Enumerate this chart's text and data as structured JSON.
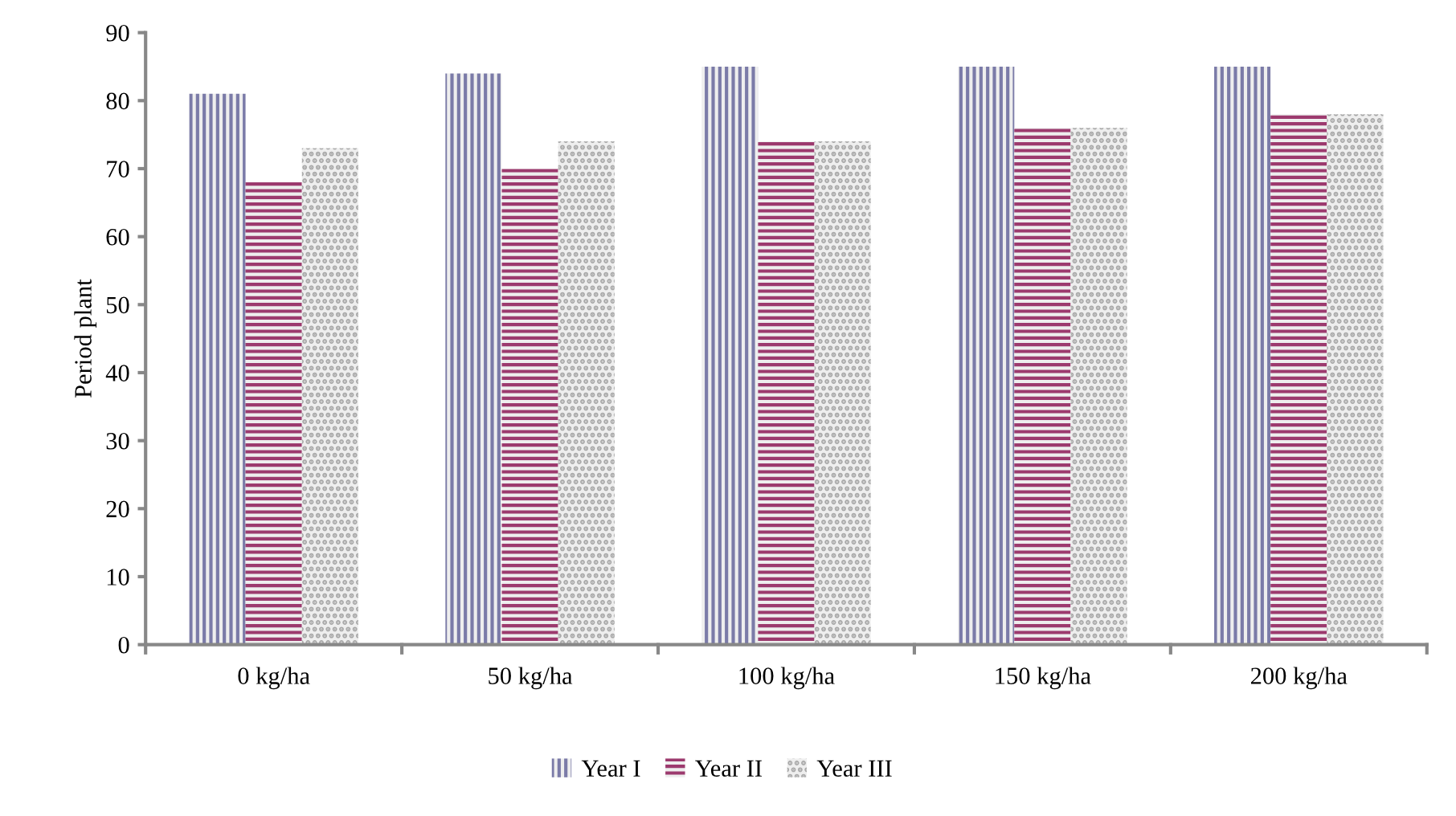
{
  "chart_data": {
    "type": "bar",
    "ylabel": "Period plant",
    "categories": [
      "0 kg/ha",
      "50 kg/ha",
      "100 kg/ha",
      "150 kg/ha",
      "200 kg/ha"
    ],
    "series": [
      {
        "name": "Year I",
        "color": "#7b7ba8",
        "values": [
          81,
          84,
          85,
          85,
          85
        ]
      },
      {
        "name": "Year II",
        "color": "#9c3a6e",
        "values": [
          68,
          70,
          74,
          76,
          78
        ]
      },
      {
        "name": "Year III",
        "color": "#a8a8a8",
        "values": [
          73,
          74,
          74,
          76,
          78
        ]
      }
    ],
    "ylim": [
      0,
      90
    ],
    "yticks": [
      0,
      10,
      20,
      30,
      40,
      50,
      60,
      70,
      80,
      90
    ],
    "grid": false,
    "legend": "bottom"
  }
}
